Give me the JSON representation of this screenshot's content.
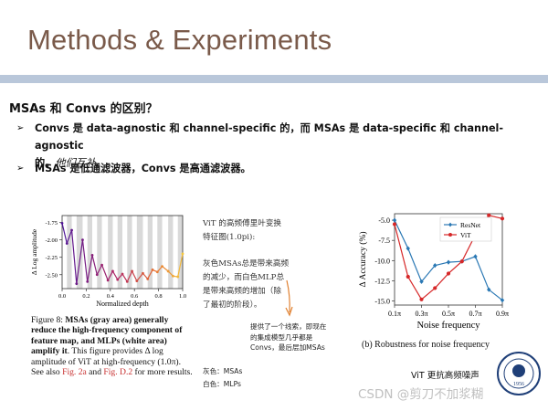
{
  "slide": {
    "title": "Methods & Experiments",
    "heading": "MSAs 和 Convs 的区别？",
    "bullet1_line1": "Convs 是 data-agnostic 和 channel-specific 的，而 MSAs 是 data-specific 和 channel-agnostic",
    "bullet1_line2_prefix": "的。",
    "bullet1_line2_italic": "他们互补。",
    "bullet2": "MSAs 是低通滤波器，Convs 是高通滤波器。",
    "arrow_glyph": "➢"
  },
  "figure_left": {
    "caption_prefix": "Figure 8: ",
    "caption_bold": "MSAs (gray area) generally reduce the high-frequency component of feature map, and MLPs (white area) amplify it",
    "caption_rest": ". This figure provides Δ log amplitude of ViT at high-frequency (1.0π). See also ",
    "caption_link1": "Fig. 2a",
    "caption_and": " and ",
    "caption_link2": "Fig. D.2",
    "caption_end": " for more results."
  },
  "chart_data": [
    {
      "type": "line",
      "title": "",
      "xlabel": "Normalized depth",
      "ylabel": "Δ Log amplitude",
      "xlim": [
        0.0,
        1.0
      ],
      "ylim": [
        -2.7,
        -1.65
      ],
      "xticks": [
        "0.0",
        "0.2",
        "0.4",
        "0.6",
        "0.8",
        "1.0"
      ],
      "yticks": [
        "-1.75",
        "-2.00",
        "-2.25",
        "-2.50"
      ],
      "x": [
        0.0,
        0.04,
        0.08,
        0.12,
        0.17,
        0.21,
        0.25,
        0.29,
        0.33,
        0.38,
        0.42,
        0.46,
        0.5,
        0.54,
        0.58,
        0.62,
        0.67,
        0.71,
        0.75,
        0.79,
        0.83,
        0.88,
        0.92,
        0.96,
        1.0
      ],
      "values": [
        -1.76,
        -2.05,
        -1.86,
        -2.63,
        -2.0,
        -2.6,
        -2.22,
        -2.5,
        -2.36,
        -2.58,
        -2.45,
        -2.57,
        -2.49,
        -2.6,
        -2.45,
        -2.59,
        -2.48,
        -2.56,
        -2.43,
        -2.46,
        -2.38,
        -2.45,
        -2.52,
        -2.53,
        -2.2
      ],
      "gray_bands": true
    },
    {
      "type": "line",
      "title": "",
      "xlabel": "Noise frequency",
      "ylabel": "Δ Accuracy (%)",
      "xlim": [
        0.1,
        0.9
      ],
      "ylim": [
        -15.5,
        -4.2
      ],
      "xticks": [
        "0.1π",
        "0.3π",
        "0.5π",
        "0.7π",
        "0.9π"
      ],
      "yticks": [
        "-5.0",
        "-7.5",
        "-10.0",
        "-12.5",
        "-15.0"
      ],
      "legend": "top-right",
      "x": [
        0.1,
        0.2,
        0.3,
        0.4,
        0.5,
        0.6,
        0.7,
        0.8,
        0.9
      ],
      "series": [
        {
          "name": "ResNet",
          "color": "#2a78b4",
          "marker": "diamond",
          "values": [
            -5.0,
            -8.5,
            -12.6,
            -10.6,
            -10.2,
            -10.1,
            -9.5,
            -13.6,
            -14.9
          ]
        },
        {
          "name": "ViT",
          "color": "#d62728",
          "marker": "circle",
          "values": [
            -5.5,
            -12.0,
            -14.8,
            -13.4,
            -11.6,
            -10.1,
            -6.8,
            -4.4,
            -4.8
          ]
        }
      ]
    }
  ],
  "figure_right": {
    "caption": "(b) Robustness for noise frequency"
  },
  "notes": {
    "note_a1": "ViT 的高频傅里叶变换",
    "note_a2": "特征图(1.0pi):",
    "note_b1": "灰色MSAs总是带来高频",
    "note_b2": "的减少，而白色MLP总",
    "note_b3": "是带来高频的增加（除",
    "note_b4": "了最初的阶段）。",
    "note_c1": "提供了一个线索，即现在",
    "note_c2": "的集成模型几乎都是",
    "note_c3": "Convs，最后层加MSAs",
    "legend_gray": "灰色：MSAs",
    "legend_white": "白色：MLPs",
    "vit_robust": "ViT 更抗高频噪声"
  },
  "watermark": "CSDN @剪刀不加浆糊",
  "logo": {
    "text": "1956"
  },
  "colors": {
    "title": "#7a5a4a",
    "rule": "#b9c7da",
    "resnet": "#2a78b4",
    "vit": "#d62728",
    "arrow": "#e08030"
  }
}
